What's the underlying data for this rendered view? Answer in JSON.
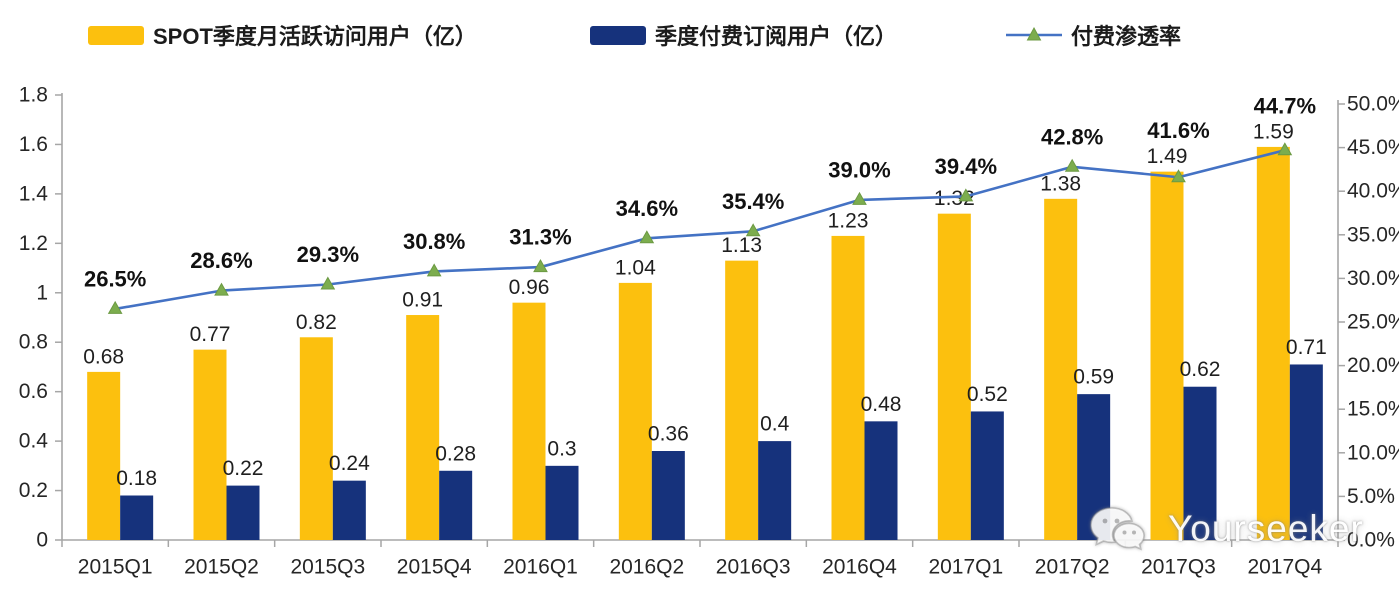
{
  "legend": {
    "items": [
      {
        "label": "SPOT季度月活跃访问用户（亿）",
        "swatch": "bar"
      },
      {
        "label": "季度付费订阅用户（亿）",
        "swatch": "bar"
      },
      {
        "label": "付费渗透率",
        "swatch": "line"
      }
    ]
  },
  "watermark": {
    "text": "Yourseeker",
    "icon": "wechat-icon"
  },
  "chart_data": {
    "type": "bar+line",
    "title": "",
    "categories": [
      "2015Q1",
      "2015Q2",
      "2015Q3",
      "2015Q4",
      "2016Q1",
      "2016Q2",
      "2016Q3",
      "2016Q4",
      "2017Q1",
      "2017Q2",
      "2017Q3",
      "2017Q4"
    ],
    "series": [
      {
        "name": "SPOT季度月活跃访问用户（亿）",
        "type": "bar",
        "axis": "left",
        "color": "#FCC00E",
        "values": [
          0.68,
          0.77,
          0.82,
          0.91,
          0.96,
          1.04,
          1.13,
          1.23,
          1.32,
          1.38,
          1.49,
          1.59
        ],
        "labels": [
          "0.68",
          "0.77",
          "0.82",
          "0.91",
          "0.96",
          "1.04",
          "1.13",
          "1.23",
          "1.32",
          "1.38",
          "1.49",
          "1.59"
        ]
      },
      {
        "name": "季度付费订阅用户（亿）",
        "type": "bar",
        "axis": "left",
        "color": "#16327C",
        "values": [
          0.18,
          0.22,
          0.24,
          0.28,
          0.3,
          0.36,
          0.4,
          0.48,
          0.52,
          0.59,
          0.62,
          0.71
        ],
        "labels": [
          "0.18",
          "0.22",
          "0.24",
          "0.28",
          "0.3",
          "0.36",
          "0.4",
          "0.48",
          "0.52",
          "0.59",
          "0.62",
          "0.71"
        ]
      },
      {
        "name": "付费渗透率",
        "type": "line",
        "axis": "right",
        "color": "#4472C4",
        "marker": "triangle",
        "marker_color": "#7CAD4E",
        "values": [
          26.5,
          28.6,
          29.3,
          30.8,
          31.3,
          34.6,
          35.4,
          39.0,
          39.4,
          42.8,
          41.6,
          44.7
        ],
        "labels": [
          "26.5%",
          "28.6%",
          "29.3%",
          "30.8%",
          "31.3%",
          "34.6%",
          "35.4%",
          "39.0%",
          "39.4%",
          "42.8%",
          "41.6%",
          "44.7%"
        ]
      }
    ],
    "left_axis": {
      "min": 0,
      "max": 1.8,
      "step": 0.2,
      "ticks": [
        "1.8",
        "1.6",
        "1.4",
        "1.2",
        "1",
        "0.8",
        "0.6",
        "0.4",
        "0.2",
        "0"
      ]
    },
    "right_axis": {
      "min": 0,
      "max": 50,
      "step": 5,
      "ticks": [
        "50.0%",
        "45.0%",
        "40.0%",
        "35.0%",
        "30.0%",
        "25.0%",
        "20.0%",
        "15.0%",
        "10.0%",
        "5.0%",
        "0.0%"
      ]
    },
    "grid": false,
    "legend_position": "top"
  }
}
